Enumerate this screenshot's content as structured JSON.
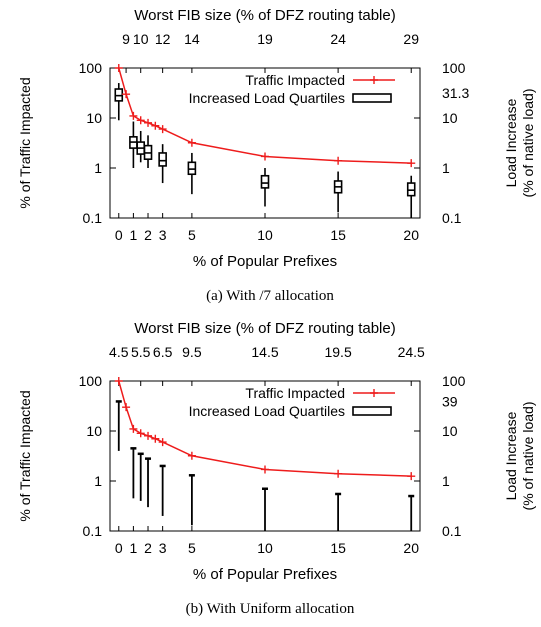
{
  "chart_data": [
    {
      "type": "line",
      "title": "",
      "top_axis_title": "Worst FIB size (% of DFZ routing table)",
      "top_tick_labels": [
        "9",
        "10",
        "12",
        "14",
        "19",
        "24",
        "29"
      ],
      "xlabel": "% of Popular Prefixes",
      "x_ticks": [
        0,
        1,
        2,
        3,
        5,
        10,
        15,
        20
      ],
      "xlim": [
        -0.6,
        20.6
      ],
      "ylabel_left": "% of Traffic Impacted",
      "ylabel_right_line1": "Load Increase",
      "ylabel_right_line2": "(% of native load)",
      "y_scale": "log",
      "ylim": [
        0.1,
        100
      ],
      "y_tick_labels": [
        "0.1",
        "1",
        "10",
        "100"
      ],
      "right_tick_labels": [
        "0.1",
        "1",
        "10",
        "31.3",
        "100"
      ],
      "legend_position": "top-right",
      "caption": "(a)  With /7 allocation",
      "series": [
        {
          "name": "Traffic Impacted",
          "color": "#ee1c1c",
          "x": [
            0,
            0.5,
            1,
            1.5,
            2,
            2.5,
            3,
            5,
            10,
            15,
            20
          ],
          "y": [
            100,
            30,
            11,
            9,
            8,
            7,
            6,
            3.2,
            1.7,
            1.4,
            1.25
          ]
        },
        {
          "name": "Increased Load Quartiles",
          "x": [
            0,
            1,
            1.5,
            2,
            3,
            5,
            10,
            15,
            20
          ],
          "min": [
            9,
            1.0,
            1.3,
            1.0,
            0.5,
            0.3,
            0.17,
            0.13,
            0.1
          ],
          "q1": [
            22,
            2.5,
            1.9,
            1.5,
            1.1,
            0.75,
            0.4,
            0.32,
            0.28
          ],
          "median": [
            28,
            3.3,
            2.5,
            2.0,
            1.4,
            0.95,
            0.5,
            0.42,
            0.36
          ],
          "q3": [
            38,
            4.2,
            3.3,
            2.8,
            2.0,
            1.3,
            0.7,
            0.55,
            0.5
          ],
          "max": [
            50,
            8.5,
            5.5,
            4.5,
            3.0,
            2.0,
            1.0,
            0.85,
            0.7
          ]
        }
      ]
    },
    {
      "type": "line",
      "title": "",
      "top_axis_title": "Worst FIB size (% of DFZ routing table)",
      "top_tick_labels": [
        "4.5",
        "5.5",
        "6.5",
        "9.5",
        "14.5",
        "19.5",
        "24.5"
      ],
      "xlabel": "% of Popular Prefixes",
      "x_ticks": [
        0,
        1,
        2,
        3,
        5,
        10,
        15,
        20
      ],
      "xlim": [
        -0.6,
        20.6
      ],
      "ylabel_left": "% of Traffic Impacted",
      "ylabel_right_line1": "Load Increase",
      "ylabel_right_line2": "(% of native load)",
      "y_scale": "log",
      "ylim": [
        0.1,
        100
      ],
      "y_tick_labels": [
        "0.1",
        "1",
        "10",
        "100"
      ],
      "right_tick_labels": [
        "0.1",
        "1",
        "10",
        "39",
        "100"
      ],
      "legend_position": "top-right",
      "caption": "(b)  With Uniform allocation",
      "series": [
        {
          "name": "Traffic Impacted",
          "color": "#ee1c1c",
          "x": [
            0,
            0.5,
            1,
            1.5,
            2,
            2.5,
            3,
            5,
            10,
            15,
            20
          ],
          "y": [
            100,
            30,
            11,
            9,
            8,
            7,
            6,
            3.2,
            1.7,
            1.4,
            1.25
          ]
        },
        {
          "name": "Increased Load Quartiles",
          "x": [
            0,
            1,
            1.5,
            2,
            3,
            5,
            10,
            15,
            20
          ],
          "low": [
            4,
            0.45,
            0.4,
            0.3,
            0.2,
            0.13,
            0.1,
            0.1,
            0.1
          ],
          "high": [
            39,
            4.5,
            3.5,
            2.8,
            2.0,
            1.3,
            0.7,
            0.55,
            0.5
          ]
        }
      ]
    }
  ]
}
